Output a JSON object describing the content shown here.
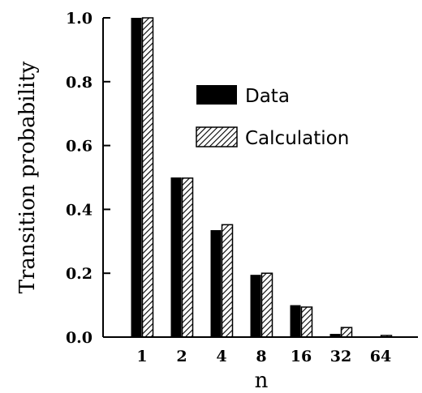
{
  "chart_data": {
    "type": "bar",
    "xlabel": "n",
    "ylabel": "Transition probability",
    "categories": [
      "1",
      "2",
      "4",
      "8",
      "16",
      "32",
      "64"
    ],
    "ylim": [
      0,
      1.0
    ],
    "yticks": [
      "0.0",
      "0.2",
      "0.4",
      "0.6",
      "0.8",
      "1.0"
    ],
    "legend_position": "upper-right",
    "grid": false,
    "series": [
      {
        "name": "Data",
        "style": "solid",
        "color": "#000000",
        "values": [
          1.0,
          0.5,
          0.335,
          0.195,
          0.1,
          0.01,
          0.0
        ]
      },
      {
        "name": "Calculation",
        "style": "hatched",
        "color": "#000000",
        "values": [
          1.0,
          0.498,
          0.352,
          0.2,
          0.094,
          0.03,
          0.005
        ]
      }
    ]
  }
}
